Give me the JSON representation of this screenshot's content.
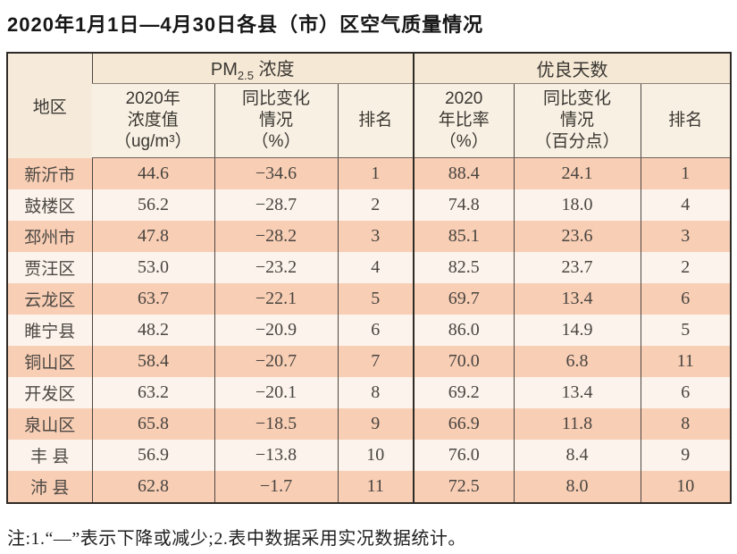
{
  "title": "2020年1月1日—4月30日各县（市）区空气质量情况",
  "header": {
    "region": "地区",
    "pm_section": {
      "prefix": "PM",
      "sub": "2.5",
      "suffix": " 浓度"
    },
    "good_days_section": "优良天数",
    "pm_value": "2020年\n浓度值\n（ug/m³）",
    "pm_change": "同比变化\n情况\n（%）",
    "pm_rank": "排名",
    "good_ratio": "2020\n年比率\n（%）",
    "good_change": "同比变化\n情况\n（百分点）",
    "good_rank": "排名"
  },
  "rows": [
    {
      "region": "新沂市",
      "pm_value": "44.6",
      "pm_change": "−34.6",
      "pm_rank": "1",
      "good_ratio": "88.4",
      "good_change": "24.1",
      "good_rank": "1"
    },
    {
      "region": "鼓楼区",
      "pm_value": "56.2",
      "pm_change": "−28.7",
      "pm_rank": "2",
      "good_ratio": "74.8",
      "good_change": "18.0",
      "good_rank": "4"
    },
    {
      "region": "邳州市",
      "pm_value": "47.8",
      "pm_change": "−28.2",
      "pm_rank": "3",
      "good_ratio": "85.1",
      "good_change": "23.6",
      "good_rank": "3"
    },
    {
      "region": "贾汪区",
      "pm_value": "53.0",
      "pm_change": "−23.2",
      "pm_rank": "4",
      "good_ratio": "82.5",
      "good_change": "23.7",
      "good_rank": "2"
    },
    {
      "region": "云龙区",
      "pm_value": "63.7",
      "pm_change": "−22.1",
      "pm_rank": "5",
      "good_ratio": "69.7",
      "good_change": "13.4",
      "good_rank": "6"
    },
    {
      "region": "睢宁县",
      "pm_value": "48.2",
      "pm_change": "−20.9",
      "pm_rank": "6",
      "good_ratio": "86.0",
      "good_change": "14.9",
      "good_rank": "5"
    },
    {
      "region": "铜山区",
      "pm_value": "58.4",
      "pm_change": "−20.7",
      "pm_rank": "7",
      "good_ratio": "70.0",
      "good_change": "6.8",
      "good_rank": "11"
    },
    {
      "region": "开发区",
      "pm_value": "63.2",
      "pm_change": "−20.1",
      "pm_rank": "8",
      "good_ratio": "69.2",
      "good_change": "13.4",
      "good_rank": "6"
    },
    {
      "region": "泉山区",
      "pm_value": "65.8",
      "pm_change": "−18.5",
      "pm_rank": "9",
      "good_ratio": "66.9",
      "good_change": "11.8",
      "good_rank": "8"
    },
    {
      "region": "丰 县",
      "pm_value": "56.9",
      "pm_change": "−13.8",
      "pm_rank": "10",
      "good_ratio": "76.0",
      "good_change": "8.4",
      "good_rank": "9"
    },
    {
      "region": "沛 县",
      "pm_value": "62.8",
      "pm_change": "−1.7",
      "pm_rank": "11",
      "good_ratio": "72.5",
      "good_change": "8.0",
      "good_rank": "10"
    }
  ],
  "footnote": "注:1.“—”表示下降或减少;2.表中数据采用实况数据统计。",
  "colors": {
    "row_pink": "#f8ceb5",
    "row_light": "#fcf3ec",
    "header_top_bg": "#f5e8d5",
    "header_sub_bg": "#f8f0e3",
    "border_dark": "#2f2b27"
  }
}
